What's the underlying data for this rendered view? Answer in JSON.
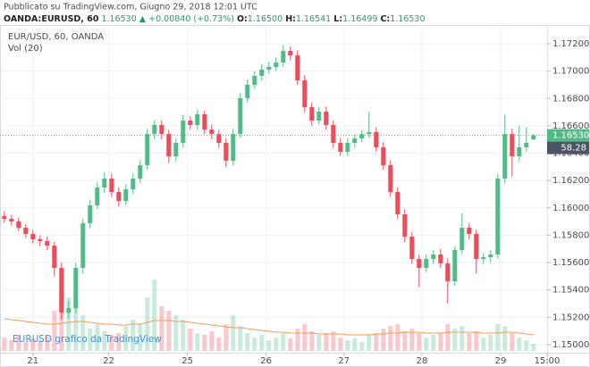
{
  "chart_data": {
    "type": "candlestick",
    "header": {
      "published": "Pubblicato su TradingView.com, Giugno 29, 2018 12:01 UTC",
      "symbol": "OANDA:EURUSD, 60",
      "last": "1.16530",
      "change": "▲ +0.00840 (+0.73%)",
      "o_label": "O:",
      "o_value": "1.16500",
      "h_label": "H:",
      "h_value": "1.16541",
      "l_label": "L:",
      "l_value": "1.16499",
      "c_label": "C:",
      "c_value": "1.16530"
    },
    "legend_title": "EUR/USD, 60, OANDA",
    "volume_title": "Vol (20)",
    "watermark": "EURUSD grafico da TradingView",
    "last_price_label": "1.16530",
    "countdown": "58.28",
    "up_color": "#53b987",
    "down_color": "#eb4d5c",
    "volume_ma_color": "#f39c5a",
    "last_line_color": "#53b987",
    "grid": true,
    "xlim": [
      -0.6,
      75.9
    ],
    "xticks": [
      {
        "value": 4,
        "label": "21"
      },
      {
        "value": 14.6,
        "label": "22"
      },
      {
        "value": 25.6,
        "label": "25"
      },
      {
        "value": 36.6,
        "label": "26"
      },
      {
        "value": 47.5,
        "label": "27"
      },
      {
        "value": 58.4,
        "label": "28"
      },
      {
        "value": 69.4,
        "label": "29"
      },
      {
        "value": 75.9,
        "label": "15:00"
      }
    ],
    "ylim": [
      1.14941,
      1.17337
    ],
    "yticks": [
      {
        "value": 1.172,
        "label": "1.17200"
      },
      {
        "value": 1.17,
        "label": "1.17000"
      },
      {
        "value": 1.168,
        "label": "1.16800"
      },
      {
        "value": 1.166,
        "label": "1.16600"
      },
      {
        "value": 1.164,
        "label": "1.16400"
      },
      {
        "value": 1.162,
        "label": "1.16200"
      },
      {
        "value": 1.16,
        "label": "1.16000"
      },
      {
        "value": 1.158,
        "label": "1.15800"
      },
      {
        "value": 1.156,
        "label": "1.15600"
      },
      {
        "value": 1.154,
        "label": "1.15400"
      },
      {
        "value": 1.152,
        "label": "1.15200"
      },
      {
        "value": 1.15,
        "label": "1.15000"
      }
    ],
    "volume_lim": [
      0,
      100
    ],
    "open": [
      1.1594,
      1.1592,
      1.15901,
      1.15855,
      1.15809,
      1.1577,
      1.15757,
      1.15724,
      1.15561,
      1.15234,
      1.15267,
      1.15561,
      1.15887,
      1.16018,
      1.16149,
      1.16214,
      1.16116,
      1.16051,
      1.16136,
      1.16214,
      1.16312,
      1.1654,
      1.16606,
      1.1654,
      1.16377,
      1.16475,
      1.16638,
      1.16606,
      1.16684,
      1.16573,
      1.1654,
      1.16475,
      1.16345,
      1.1654,
      1.16802,
      1.169,
      1.16965,
      1.17011,
      1.1703,
      1.17063,
      1.17148,
      1.17115,
      1.16932,
      1.16736,
      1.16638,
      1.16704,
      1.16606,
      1.16475,
      1.1641,
      1.16475,
      1.16508,
      1.1654,
      1.16554,
      1.16443,
      1.16312,
      1.16116,
      1.15953,
      1.1579,
      1.15626,
      1.15561,
      1.15626,
      1.15659,
      1.15594,
      1.15463,
      1.15692,
      1.15855,
      1.15809,
      1.15626,
      1.15639,
      1.15659,
      1.16214,
      1.1654,
      1.16377,
      1.16443,
      1.165
    ],
    "high": [
      1.15975,
      1.1595,
      1.1593,
      1.1588,
      1.1584,
      1.158,
      1.1579,
      1.1575,
      1.156,
      1.1532,
      1.156,
      1.1592,
      1.1606,
      1.1619,
      1.1626,
      1.1625,
      1.1615,
      1.1617,
      1.1625,
      1.1635,
      1.1658,
      1.1664,
      1.1664,
      1.1657,
      1.1651,
      1.1668,
      1.1667,
      1.1672,
      1.1671,
      1.1661,
      1.1657,
      1.1651,
      1.1658,
      1.1684,
      1.1694,
      1.17,
      1.1705,
      1.1707,
      1.171,
      1.1719,
      1.1718,
      1.1715,
      1.1697,
      1.1677,
      1.1674,
      1.1674,
      1.1664,
      1.1651,
      1.1651,
      1.1654,
      1.1657,
      1.167,
      1.1659,
      1.1648,
      1.1635,
      1.1615,
      1.1599,
      1.1582,
      1.1566,
      1.1566,
      1.1569,
      1.157,
      1.1563,
      1.1572,
      1.1596,
      1.1589,
      1.1584,
      1.1567,
      1.1569,
      1.1625,
      1.1668,
      1.1658,
      1.166,
      1.1659,
      1.16541
    ],
    "low": [
      1.1589,
      1.1587,
      1.1583,
      1.1578,
      1.1574,
      1.1572,
      1.1569,
      1.155,
      1.1518,
      1.1519,
      1.1523,
      1.1552,
      1.1585,
      1.1599,
      1.1611,
      1.1608,
      1.1601,
      1.1602,
      1.161,
      1.1618,
      1.1628,
      1.165,
      1.165,
      1.1633,
      1.1634,
      1.1644,
      1.1657,
      1.1657,
      1.1654,
      1.165,
      1.1644,
      1.163,
      1.1631,
      1.1651,
      1.1677,
      1.1687,
      1.1693,
      1.1698,
      1.17,
      1.1703,
      1.1708,
      1.169,
      1.167,
      1.166,
      1.1661,
      1.1657,
      1.1644,
      1.1638,
      1.1638,
      1.1644,
      1.1648,
      1.1651,
      1.1641,
      1.1628,
      1.1608,
      1.1592,
      1.1575,
      1.1559,
      1.1542,
      1.1553,
      1.1559,
      1.1556,
      1.153,
      1.1543,
      1.1566,
      1.1577,
      1.1552,
      1.1559,
      1.156,
      1.1563,
      1.1618,
      1.1623,
      1.1634,
      1.1641,
      1.16499
    ],
    "close": [
      1.1592,
      1.15901,
      1.15855,
      1.15809,
      1.1577,
      1.15757,
      1.15724,
      1.15561,
      1.15234,
      1.15267,
      1.15561,
      1.15887,
      1.16018,
      1.16149,
      1.16214,
      1.16116,
      1.16051,
      1.16136,
      1.16214,
      1.16312,
      1.1654,
      1.16606,
      1.1654,
      1.16377,
      1.16475,
      1.16638,
      1.16606,
      1.16684,
      1.16573,
      1.1654,
      1.16475,
      1.16345,
      1.1654,
      1.16802,
      1.169,
      1.16965,
      1.17011,
      1.1703,
      1.17063,
      1.17148,
      1.17115,
      1.16932,
      1.16736,
      1.16638,
      1.16704,
      1.16606,
      1.16475,
      1.1641,
      1.16475,
      1.16508,
      1.1654,
      1.16554,
      1.16443,
      1.16312,
      1.16116,
      1.15953,
      1.1579,
      1.15626,
      1.15561,
      1.15626,
      1.15659,
      1.15594,
      1.15463,
      1.15692,
      1.15855,
      1.15809,
      1.15626,
      1.15639,
      1.15659,
      1.16214,
      1.1654,
      1.16377,
      1.16443,
      1.16475,
      1.1653
    ],
    "volume": [
      15,
      12,
      18,
      10,
      14,
      12,
      16,
      45,
      70,
      60,
      55,
      40,
      25,
      30,
      22,
      18,
      20,
      28,
      35,
      30,
      60,
      80,
      50,
      45,
      40,
      35,
      25,
      20,
      18,
      22,
      15,
      30,
      40,
      28,
      20,
      15,
      18,
      12,
      15,
      20,
      14,
      25,
      30,
      22,
      18,
      20,
      22,
      15,
      12,
      14,
      10,
      18,
      20,
      25,
      28,
      30,
      22,
      25,
      20,
      15,
      18,
      20,
      30,
      25,
      28,
      20,
      22,
      15,
      18,
      30,
      28,
      20,
      15,
      12,
      8
    ],
    "volume_ma": [
      36,
      35,
      34,
      33,
      32,
      31,
      30,
      30,
      31,
      32,
      33,
      33,
      32,
      31,
      30,
      30,
      29,
      29,
      30,
      30,
      32,
      34,
      34,
      34,
      33,
      33,
      32,
      31,
      30,
      29,
      28,
      27,
      26,
      26,
      25,
      24,
      23,
      22,
      21,
      21,
      20,
      20,
      20,
      20,
      19,
      19,
      19,
      19,
      18,
      18,
      18,
      18,
      19,
      19,
      20,
      20,
      21,
      21,
      21,
      20,
      20,
      20,
      21,
      21,
      21,
      21,
      21,
      20,
      20,
      20,
      21,
      21,
      20,
      19,
      18
    ]
  }
}
